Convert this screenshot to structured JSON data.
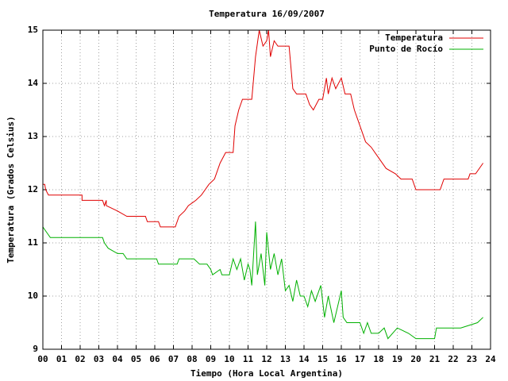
{
  "chart_data": {
    "type": "line",
    "title": "Temperatura 16/09/2007",
    "xlabel": "Tiempo (Hora Local Argentina)",
    "ylabel": "Temperatura (Grados Celsius)",
    "xlim": [
      0,
      24
    ],
    "ylim": [
      9,
      15
    ],
    "xticks": [
      {
        "value": 0,
        "label": "00"
      },
      {
        "value": 1,
        "label": "01"
      },
      {
        "value": 2,
        "label": "02"
      },
      {
        "value": 3,
        "label": "03"
      },
      {
        "value": 4,
        "label": "04"
      },
      {
        "value": 5,
        "label": "05"
      },
      {
        "value": 6,
        "label": "06"
      },
      {
        "value": 7,
        "label": "07"
      },
      {
        "value": 8,
        "label": "08"
      },
      {
        "value": 9,
        "label": "09"
      },
      10,
      11,
      12,
      13,
      14,
      15,
      16,
      17,
      18,
      19,
      20,
      21,
      22,
      23,
      24
    ],
    "yticks": [
      9,
      10,
      11,
      12,
      13,
      14,
      15
    ],
    "grid": true,
    "legend": "top-right",
    "series": [
      {
        "name": "Temperatura",
        "color": "#e00000",
        "x": [
          0.0,
          0.1,
          0.15,
          0.3,
          1.0,
          2.1,
          2.1,
          3.2,
          3.3,
          3.4,
          3.4,
          4.0,
          4.5,
          5.5,
          5.6,
          6.2,
          6.3,
          7.1,
          7.3,
          7.6,
          7.8,
          8.2,
          8.5,
          8.9,
          9.2,
          9.5,
          9.8,
          10.2,
          10.3,
          10.5,
          10.7,
          11.2,
          11.4,
          11.6,
          11.8,
          12.0,
          12.1,
          12.2,
          12.4,
          12.6,
          13.2,
          13.4,
          13.6,
          14.1,
          14.3,
          14.5,
          14.8,
          15.0,
          15.2,
          15.3,
          15.5,
          15.7,
          16.0,
          16.2,
          16.5,
          16.7,
          17.0,
          17.3,
          17.6,
          18.0,
          18.4,
          18.9,
          19.2,
          19.8,
          20.0,
          21.3,
          21.5,
          22.8,
          22.9,
          23.2,
          23.6
        ],
        "values": [
          12.1,
          12.1,
          12.0,
          11.9,
          11.9,
          11.9,
          11.8,
          11.8,
          11.7,
          11.8,
          11.7,
          11.6,
          11.5,
          11.5,
          11.4,
          11.4,
          11.3,
          11.3,
          11.5,
          11.6,
          11.7,
          11.8,
          11.9,
          12.1,
          12.2,
          12.5,
          12.7,
          12.7,
          13.2,
          13.5,
          13.7,
          13.7,
          14.5,
          15.0,
          14.7,
          14.8,
          15.0,
          14.5,
          14.8,
          14.7,
          14.7,
          13.9,
          13.8,
          13.8,
          13.6,
          13.5,
          13.7,
          13.7,
          14.1,
          13.8,
          14.1,
          13.9,
          14.1,
          13.8,
          13.8,
          13.5,
          13.2,
          12.9,
          12.8,
          12.6,
          12.4,
          12.3,
          12.2,
          12.2,
          12.0,
          12.0,
          12.2,
          12.2,
          12.3,
          12.3,
          12.5
        ]
      },
      {
        "name": "Punto de Rocío",
        "color": "#00b000",
        "x": [
          0.0,
          0.2,
          0.4,
          3.2,
          3.3,
          3.5,
          4.0,
          4.3,
          4.5,
          6.1,
          6.2,
          7.2,
          7.3,
          8.1,
          8.4,
          8.8,
          9.0,
          9.1,
          9.5,
          9.6,
          10.0,
          10.2,
          10.4,
          10.6,
          10.8,
          11.0,
          11.1,
          11.2,
          11.4,
          11.5,
          11.7,
          11.9,
          12.0,
          12.2,
          12.4,
          12.6,
          12.8,
          13.0,
          13.2,
          13.4,
          13.6,
          13.8,
          14.0,
          14.2,
          14.4,
          14.6,
          14.9,
          15.1,
          15.3,
          15.6,
          15.8,
          16.0,
          16.1,
          16.3,
          17.0,
          17.2,
          17.4,
          17.6,
          18.0,
          18.3,
          18.5,
          19.0,
          19.6,
          20.0,
          21.0,
          21.1,
          22.0,
          22.4,
          23.3,
          23.6
        ],
        "values": [
          11.3,
          11.2,
          11.1,
          11.1,
          11.0,
          10.9,
          10.8,
          10.8,
          10.7,
          10.7,
          10.6,
          10.6,
          10.7,
          10.7,
          10.6,
          10.6,
          10.5,
          10.4,
          10.5,
          10.4,
          10.4,
          10.7,
          10.5,
          10.7,
          10.3,
          10.6,
          10.5,
          10.2,
          11.4,
          10.4,
          10.8,
          10.2,
          11.2,
          10.5,
          10.8,
          10.4,
          10.7,
          10.1,
          10.2,
          9.9,
          10.3,
          10.0,
          10.0,
          9.8,
          10.1,
          9.9,
          10.2,
          9.6,
          10.0,
          9.5,
          9.8,
          10.1,
          9.6,
          9.5,
          9.5,
          9.3,
          9.5,
          9.3,
          9.3,
          9.4,
          9.2,
          9.4,
          9.3,
          9.2,
          9.2,
          9.4,
          9.4,
          9.4,
          9.5,
          9.6
        ]
      }
    ]
  }
}
